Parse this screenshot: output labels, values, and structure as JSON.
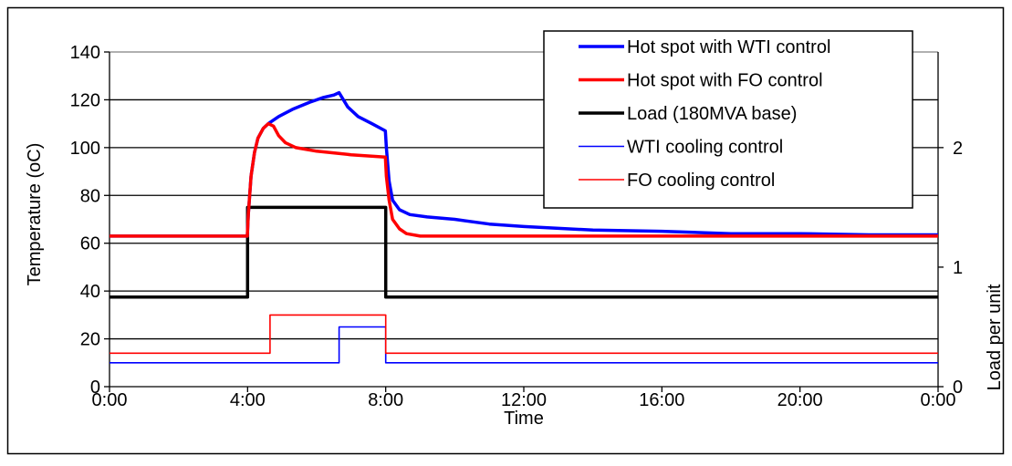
{
  "chart_data": {
    "type": "line",
    "xlabel": "Time",
    "ylabel": "Temperature (oC)",
    "y2label": "Load per unit",
    "xlim": [
      0,
      24
    ],
    "ylim": [
      0,
      140
    ],
    "y2lim": [
      0,
      2.8
    ],
    "x_ticks": [
      0,
      4,
      8,
      12,
      16,
      20,
      24
    ],
    "x_tick_labels": [
      "0:00",
      "4:00",
      "8:00",
      "12:00",
      "16:00",
      "20:00",
      "0:00"
    ],
    "y_ticks": [
      0,
      20,
      40,
      60,
      80,
      100,
      120,
      140
    ],
    "y_tick_labels": [
      "0",
      "20",
      "40",
      "60",
      "80",
      "100",
      "120",
      "140"
    ],
    "y2_ticks": [
      0,
      1,
      2
    ],
    "y2_tick_labels": [
      "0",
      "1",
      "2"
    ],
    "grid": "horizontal",
    "legend_position": "top-right",
    "series": [
      {
        "name": "Hot spot with WTI control",
        "color": "#0000ff",
        "width": "thick",
        "axis": "left",
        "x": [
          0,
          3.99,
          4.02,
          4.1,
          4.2,
          4.3,
          4.45,
          4.6,
          4.9,
          5.3,
          5.8,
          6.2,
          6.5,
          6.65,
          6.9,
          7.2,
          7.6,
          7.99,
          8.02,
          8.1,
          8.2,
          8.4,
          8.7,
          9.2,
          10,
          11,
          12,
          14,
          16,
          18,
          20,
          22,
          24
        ],
        "y": [
          63,
          63,
          72,
          88,
          98,
          104,
          108,
          110,
          113,
          116,
          119,
          121,
          122,
          123,
          117,
          113,
          110,
          107,
          100,
          86,
          78,
          74,
          72,
          71,
          70,
          68,
          67,
          65.5,
          65,
          64,
          64,
          63.5,
          63.5
        ]
      },
      {
        "name": "Hot spot with FO control",
        "color": "#ff0000",
        "width": "thick",
        "axis": "left",
        "x": [
          0,
          3.99,
          4.02,
          4.1,
          4.2,
          4.3,
          4.45,
          4.6,
          4.75,
          4.9,
          5.1,
          5.4,
          6,
          7,
          7.99,
          8.02,
          8.1,
          8.2,
          8.4,
          8.6,
          9,
          10,
          12,
          16,
          20,
          24
        ],
        "y": [
          63,
          63,
          72,
          88,
          98,
          104,
          108,
          110,
          109,
          105,
          102,
          100,
          98.5,
          97,
          96,
          88,
          78,
          70,
          66,
          64,
          63,
          63,
          63,
          63,
          63,
          63
        ]
      },
      {
        "name": "Load (180MVA base)",
        "color": "#000000",
        "width": "thick",
        "axis": "right",
        "step": true,
        "x": [
          0,
          4,
          4,
          8,
          8,
          24
        ],
        "y": [
          0.75,
          0.75,
          1.5,
          1.5,
          0.75,
          0.75
        ]
      },
      {
        "name": "WTI cooling control",
        "color": "#0000ff",
        "width": "thin",
        "axis": "right",
        "step": true,
        "x": [
          0,
          6.65,
          6.65,
          8,
          8,
          24
        ],
        "y": [
          0.2,
          0.2,
          0.5,
          0.5,
          0.2,
          0.2
        ]
      },
      {
        "name": "FO cooling control",
        "color": "#ff0000",
        "width": "thin",
        "axis": "right",
        "step": true,
        "x": [
          0,
          4.65,
          4.65,
          8,
          8,
          24
        ],
        "y": [
          0.28,
          0.28,
          0.6,
          0.6,
          0.28,
          0.28
        ]
      }
    ]
  }
}
